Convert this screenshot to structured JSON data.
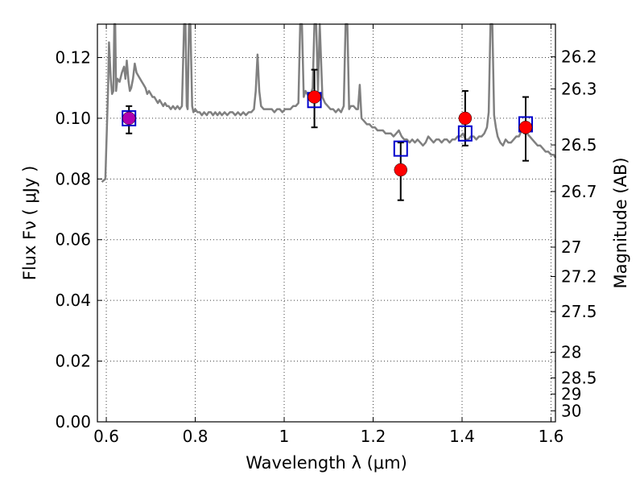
{
  "chart_data": {
    "type": "scatter",
    "title": "",
    "xlabel": "Wavelength  λ (μm)",
    "ylabel": "Flux  Fν  ( μJy )",
    "y2label": "Magnitude (AB)",
    "xlim": [
      0.58,
      1.61
    ],
    "ylim": [
      0.0,
      0.131
    ],
    "grid": true,
    "x_ticks": [
      0.6,
      0.8,
      1.0,
      1.2,
      1.4,
      1.6
    ],
    "x_tick_labels": [
      "0.6",
      "0.8",
      "1",
      "1.2",
      "1.4",
      "1.6"
    ],
    "y_ticks": [
      0.0,
      0.02,
      0.04,
      0.06,
      0.08,
      0.1,
      0.12
    ],
    "y_tick_labels": [
      "0.00",
      "0.02",
      "0.04",
      "0.06",
      "0.08",
      "0.10",
      "0.12"
    ],
    "mag_ticks": [
      "26.2",
      "26.3",
      "26.5",
      "26.7",
      "27",
      "27.2",
      "27.5",
      "28",
      "28.5",
      "29",
      "30"
    ],
    "series": [
      {
        "kind": "line",
        "color": "#808080",
        "x": [
          0.59,
          0.598,
          0.6,
          0.604,
          0.606,
          0.61,
          0.613,
          0.616,
          0.618,
          0.62,
          0.622,
          0.625,
          0.63,
          0.635,
          0.64,
          0.643,
          0.646,
          0.65,
          0.653,
          0.656,
          0.66,
          0.664,
          0.668,
          0.672,
          0.676,
          0.68,
          0.684,
          0.688,
          0.692,
          0.696,
          0.7,
          0.704,
          0.708,
          0.712,
          0.716,
          0.72,
          0.724,
          0.728,
          0.732,
          0.736,
          0.74,
          0.745,
          0.75,
          0.755,
          0.76,
          0.765,
          0.77,
          0.775,
          0.778,
          0.781,
          0.783,
          0.786,
          0.789,
          0.793,
          0.796,
          0.8,
          0.805,
          0.81,
          0.815,
          0.82,
          0.826,
          0.83,
          0.835,
          0.84,
          0.845,
          0.85,
          0.855,
          0.86,
          0.866,
          0.872,
          0.878,
          0.884,
          0.89,
          0.896,
          0.902,
          0.908,
          0.914,
          0.92,
          0.926,
          0.932,
          0.936,
          0.94,
          0.944,
          0.948,
          0.954,
          0.96,
          0.966,
          0.972,
          0.978,
          0.984,
          0.99,
          0.996,
          1.002,
          1.008,
          1.014,
          1.02,
          1.026,
          1.032,
          1.036,
          1.04,
          1.044,
          1.048,
          1.052,
          1.056,
          1.06,
          1.064,
          1.068,
          1.072,
          1.076,
          1.08,
          1.086,
          1.092,
          1.098,
          1.104,
          1.11,
          1.116,
          1.122,
          1.128,
          1.134,
          1.138,
          1.142,
          1.146,
          1.15,
          1.156,
          1.162,
          1.166,
          1.17,
          1.174,
          1.18,
          1.186,
          1.192,
          1.198,
          1.204,
          1.21,
          1.216,
          1.222,
          1.228,
          1.234,
          1.24,
          1.246,
          1.252,
          1.258,
          1.264,
          1.27,
          1.276,
          1.282,
          1.288,
          1.294,
          1.3,
          1.306,
          1.312,
          1.318,
          1.324,
          1.33,
          1.336,
          1.342,
          1.348,
          1.354,
          1.36,
          1.366,
          1.372,
          1.378,
          1.384,
          1.39,
          1.396,
          1.402,
          1.408,
          1.414,
          1.42,
          1.426,
          1.432,
          1.438,
          1.444,
          1.45,
          1.456,
          1.46,
          1.464,
          1.468,
          1.472,
          1.476,
          1.48,
          1.486,
          1.492,
          1.498,
          1.504,
          1.51,
          1.516,
          1.522,
          1.528,
          1.534,
          1.54,
          1.546,
          1.552,
          1.558,
          1.564,
          1.57,
          1.576,
          1.582,
          1.588,
          1.594,
          1.6,
          1.606,
          1.61
        ],
        "values": [
          0.079,
          0.08,
          0.09,
          0.11,
          0.125,
          0.113,
          0.108,
          0.109,
          0.131,
          0.131,
          0.109,
          0.113,
          0.112,
          0.115,
          0.117,
          0.113,
          0.119,
          0.112,
          0.109,
          0.11,
          0.113,
          0.118,
          0.115,
          0.114,
          0.113,
          0.112,
          0.111,
          0.11,
          0.108,
          0.109,
          0.108,
          0.107,
          0.107,
          0.106,
          0.105,
          0.106,
          0.105,
          0.104,
          0.105,
          0.104,
          0.104,
          0.103,
          0.104,
          0.103,
          0.104,
          0.103,
          0.104,
          0.131,
          0.131,
          0.104,
          0.103,
          0.131,
          0.131,
          0.104,
          0.102,
          0.103,
          0.102,
          0.102,
          0.101,
          0.102,
          0.101,
          0.102,
          0.102,
          0.101,
          0.102,
          0.101,
          0.102,
          0.101,
          0.102,
          0.101,
          0.102,
          0.102,
          0.101,
          0.102,
          0.101,
          0.102,
          0.101,
          0.102,
          0.102,
          0.103,
          0.109,
          0.121,
          0.109,
          0.104,
          0.103,
          0.103,
          0.103,
          0.103,
          0.102,
          0.103,
          0.103,
          0.102,
          0.103,
          0.103,
          0.103,
          0.104,
          0.104,
          0.105,
          0.131,
          0.131,
          0.107,
          0.109,
          0.108,
          0.107,
          0.108,
          0.11,
          0.131,
          0.131,
          0.109,
          0.131,
          0.107,
          0.105,
          0.104,
          0.103,
          0.103,
          0.102,
          0.103,
          0.102,
          0.104,
          0.131,
          0.131,
          0.103,
          0.104,
          0.104,
          0.103,
          0.103,
          0.111,
          0.1,
          0.099,
          0.098,
          0.098,
          0.097,
          0.097,
          0.096,
          0.096,
          0.096,
          0.095,
          0.095,
          0.095,
          0.094,
          0.095,
          0.096,
          0.094,
          0.093,
          0.093,
          0.092,
          0.093,
          0.092,
          0.093,
          0.092,
          0.091,
          0.092,
          0.094,
          0.093,
          0.092,
          0.093,
          0.093,
          0.092,
          0.093,
          0.093,
          0.092,
          0.093,
          0.093,
          0.094,
          0.094,
          0.095,
          0.093,
          0.093,
          0.094,
          0.094,
          0.093,
          0.094,
          0.094,
          0.095,
          0.097,
          0.102,
          0.131,
          0.131,
          0.101,
          0.097,
          0.094,
          0.092,
          0.091,
          0.093,
          0.092,
          0.092,
          0.093,
          0.094,
          0.094,
          0.096,
          0.095,
          0.095,
          0.094,
          0.093,
          0.092,
          0.091,
          0.091,
          0.09,
          0.089,
          0.089,
          0.088,
          0.088,
          0.087
        ]
      },
      {
        "kind": "points",
        "marker": "circle",
        "color": "#ff0000",
        "x": [
          0.651,
          1.068,
          1.262,
          1.407,
          1.543
        ],
        "values": [
          0.1,
          0.107,
          0.083,
          0.1,
          0.097
        ]
      },
      {
        "kind": "points",
        "marker": "square",
        "color": "#0000cc",
        "x": [
          0.651,
          1.068,
          1.262,
          1.407,
          1.543
        ],
        "values": [
          0.1,
          0.106,
          0.09,
          0.095,
          0.098
        ]
      },
      {
        "kind": "errorbars",
        "color": "#000000",
        "x": [
          0.651,
          1.068,
          1.262,
          1.407,
          1.543
        ],
        "values": [
          0.1,
          0.107,
          0.083,
          0.1,
          0.097
        ],
        "low": [
          0.095,
          0.097,
          0.073,
          0.091,
          0.086
        ],
        "high": [
          0.104,
          0.116,
          0.092,
          0.109,
          0.107
        ]
      }
    ]
  }
}
